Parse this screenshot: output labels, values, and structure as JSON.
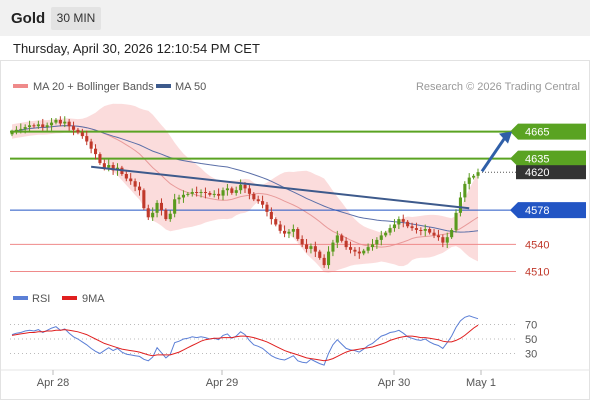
{
  "header": {
    "symbol": "Gold",
    "timeframe": "30 MIN"
  },
  "timestamp": "Thursday, April 30, 2026 12:10:54 PM CET",
  "legend": {
    "bb_label": "MA 20 + Bollinger Bands",
    "ma50_label": "MA 50",
    "copyright": "Research © 2026 Trading Central",
    "rsi_label": "RSI",
    "rsi9_label": "9MA"
  },
  "colors": {
    "bullish": "#5a9a1e",
    "bearish": "#c0392b",
    "band_fill": "#fbd8d8",
    "ma20": "#e89a9a",
    "ma50": "#5b6fa8",
    "trendline": "#3d5a8c",
    "support_line": "#ef8a8a",
    "pivot_line": "#2255c4",
    "resistance_line": "#5aa322",
    "current_price_bg": "#333333",
    "rsi_line": "#5b7fd6",
    "rsi_ma_line": "#e02020",
    "arrow": "#2f5fa8"
  },
  "chart_data": [
    {
      "type": "candlestick",
      "x_tick_labels": [
        "Apr 28",
        "Apr 29",
        "Apr 30",
        "May 1"
      ],
      "ylim": [
        4495,
        4700
      ],
      "price_levels": [
        {
          "kind": "resistance",
          "value": 4665,
          "label": "4665"
        },
        {
          "kind": "resistance",
          "value": 4635,
          "label": "4635"
        },
        {
          "kind": "current",
          "value": 4620,
          "label": "4620"
        },
        {
          "kind": "pivot",
          "value": 4578,
          "label": "4578"
        },
        {
          "kind": "support",
          "value": 4540,
          "label": "4540"
        },
        {
          "kind": "support",
          "value": 4510,
          "label": "4510"
        }
      ],
      "close_series": [
        4665,
        4667,
        4668,
        4670,
        4672,
        4671,
        4673,
        4670,
        4672,
        4675,
        4678,
        4674,
        4676,
        4671,
        4667,
        4664,
        4660,
        4654,
        4646,
        4640,
        4630,
        4625,
        4628,
        4622,
        4625,
        4618,
        4613,
        4610,
        4604,
        4600,
        4580,
        4570,
        4575,
        4586,
        4578,
        4568,
        4574,
        4590,
        4592,
        4595,
        4596,
        4598,
        4597,
        4598,
        4597,
        4595,
        4596,
        4594,
        4600,
        4602,
        4597,
        4600,
        4606,
        4602,
        4596,
        4590,
        4588,
        4584,
        4576,
        4568,
        4562,
        4555,
        4552,
        4554,
        4557,
        4546,
        4540,
        4535,
        4538,
        4532,
        4525,
        4517,
        4532,
        4542,
        4550,
        4544,
        4537,
        4534,
        4532,
        4530,
        4533,
        4537,
        4540,
        4545,
        4550,
        4553,
        4558,
        4562,
        4568,
        4565,
        4560,
        4558,
        4556,
        4555,
        4557,
        4553,
        4550,
        4548,
        4542,
        4548,
        4556,
        4575,
        4592,
        4607,
        4614,
        4616,
        4620
      ],
      "trendline": {
        "from_index": 18,
        "from_value": 4626,
        "to_index": 104,
        "to_value": 4580
      },
      "forecast_arrow": {
        "from_value": 4621,
        "to_value": 4665
      }
    },
    {
      "type": "line",
      "name": "RSI",
      "ylim": [
        10,
        90
      ],
      "y_ticks": [
        70,
        50,
        30
      ],
      "y_tick_labels": [
        "70",
        "50",
        "30"
      ],
      "series": [
        {
          "name": "RSI",
          "values": [
            56,
            58,
            59,
            61,
            62,
            61,
            63,
            59,
            62,
            65,
            67,
            62,
            64,
            58,
            53,
            50,
            46,
            42,
            37,
            33,
            30,
            34,
            38,
            34,
            37,
            32,
            29,
            28,
            27,
            26,
            22,
            20,
            25,
            38,
            31,
            24,
            29,
            45,
            47,
            50,
            51,
            53,
            52,
            53,
            52,
            50,
            51,
            49,
            55,
            57,
            51,
            54,
            60,
            56,
            48,
            42,
            40,
            37,
            32,
            27,
            24,
            22,
            21,
            24,
            27,
            20,
            18,
            17,
            22,
            19,
            16,
            14,
            30,
            42,
            49,
            43,
            37,
            35,
            34,
            32,
            36,
            41,
            44,
            49,
            54,
            56,
            59,
            60,
            62,
            58,
            53,
            51,
            49,
            48,
            50,
            46,
            43,
            41,
            37,
            45,
            54,
            66,
            75,
            80,
            82,
            80,
            78
          ]
        },
        {
          "name": "9MA",
          "values": [
            55,
            56,
            57,
            58,
            59,
            59,
            60,
            60,
            61,
            61,
            62,
            62,
            63,
            62,
            61,
            60,
            58,
            56,
            53,
            50,
            47,
            44,
            42,
            40,
            38,
            36,
            35,
            34,
            33,
            32,
            30,
            28,
            27,
            28,
            28,
            28,
            28,
            30,
            32,
            35,
            38,
            41,
            44,
            47,
            49,
            50,
            51,
            51,
            52,
            52,
            52,
            53,
            54,
            54,
            53,
            52,
            50,
            48,
            46,
            43,
            40,
            37,
            34,
            32,
            30,
            28,
            26,
            24,
            23,
            22,
            21,
            20,
            21,
            23,
            26,
            29,
            32,
            34,
            35,
            36,
            37,
            38,
            39,
            41,
            43,
            45,
            48,
            50,
            52,
            53,
            54,
            54,
            53,
            52,
            52,
            51,
            50,
            49,
            47,
            46,
            46,
            48,
            51,
            55,
            60,
            65,
            69
          ]
        }
      ]
    }
  ]
}
